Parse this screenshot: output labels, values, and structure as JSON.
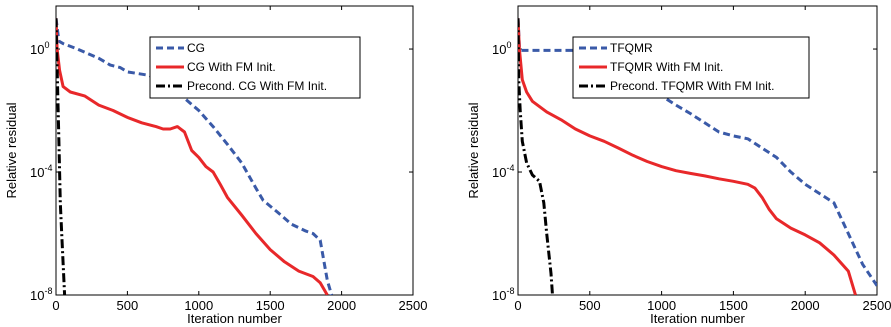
{
  "chart_data": [
    {
      "type": "line",
      "xlabel": "Iteration number",
      "ylabel": "Relative residual",
      "xlim": [
        0,
        2500
      ],
      "ylim_log10": [
        -8,
        1.4
      ],
      "y_scale": "log",
      "x_ticks": [
        "0",
        "500",
        "1000",
        "1500",
        "2000",
        "2500"
      ],
      "y_ticks": [
        {
          "base": "10",
          "exp": "0"
        },
        {
          "base": "10",
          "exp": "-4"
        },
        {
          "base": "10",
          "exp": "-8"
        }
      ],
      "legend_position": "top-right",
      "series": [
        {
          "name": "CG",
          "color": "#3a5aa8",
          "style": "dashed",
          "points": [
            [
              0,
              10
            ],
            [
              20,
              1.8
            ],
            [
              50,
              1.5
            ],
            [
              150,
              1.0
            ],
            [
              300,
              0.5
            ],
            [
              380,
              0.3
            ],
            [
              450,
              0.25
            ],
            [
              500,
              0.18
            ],
            [
              650,
              0.14
            ],
            [
              720,
              0.1
            ],
            [
              800,
              0.06
            ],
            [
              900,
              0.025
            ],
            [
              1000,
              0.01
            ],
            [
              1100,
              0.003
            ],
            [
              1200,
              0.0008
            ],
            [
              1300,
              0.0002
            ],
            [
              1400,
              3e-05
            ],
            [
              1450,
              1.2e-05
            ],
            [
              1550,
              5e-06
            ],
            [
              1650,
              2e-06
            ],
            [
              1750,
              1.2e-06
            ],
            [
              1800,
              1e-06
            ],
            [
              1850,
              6e-07
            ],
            [
              1900,
              3e-08
            ],
            [
              1930,
              1e-08
            ]
          ]
        },
        {
          "name": "CG With FM Init.",
          "color": "#e8282a",
          "style": "solid",
          "points": [
            [
              0,
              10
            ],
            [
              8,
              1
            ],
            [
              25,
              0.2
            ],
            [
              50,
              0.06
            ],
            [
              100,
              0.04
            ],
            [
              200,
              0.03
            ],
            [
              300,
              0.015
            ],
            [
              400,
              0.01
            ],
            [
              500,
              0.006
            ],
            [
              600,
              0.004
            ],
            [
              700,
              0.003
            ],
            [
              750,
              0.0025
            ],
            [
              800,
              0.0025
            ],
            [
              850,
              0.003
            ],
            [
              900,
              0.002
            ],
            [
              950,
              0.0005
            ],
            [
              1000,
              0.0003
            ],
            [
              1050,
              0.00015
            ],
            [
              1100,
              0.0001
            ],
            [
              1150,
              4e-05
            ],
            [
              1200,
              1.5e-05
            ],
            [
              1300,
              4e-06
            ],
            [
              1400,
              1e-06
            ],
            [
              1500,
              3e-07
            ],
            [
              1600,
              1.2e-07
            ],
            [
              1700,
              6e-08
            ],
            [
              1800,
              4e-08
            ],
            [
              1850,
              2.5e-08
            ],
            [
              1900,
              1e-08
            ]
          ]
        },
        {
          "name": "Precond. CG With FM Init.",
          "color": "#000000",
          "style": "dashdot",
          "points": [
            [
              0,
              10
            ],
            [
              10,
              0.1
            ],
            [
              20,
              0.001
            ],
            [
              30,
              1e-05
            ],
            [
              40,
              1e-06
            ],
            [
              60,
              1e-08
            ]
          ]
        }
      ]
    },
    {
      "type": "line",
      "xlabel": "Iteration number",
      "ylabel": "Relative residual",
      "xlim": [
        0,
        2500
      ],
      "ylim_log10": [
        -8,
        1.4
      ],
      "y_scale": "log",
      "x_ticks": [
        "0",
        "500",
        "1000",
        "1500",
        "2000",
        "2500"
      ],
      "y_ticks": [
        {
          "base": "10",
          "exp": "0"
        },
        {
          "base": "10",
          "exp": "-4"
        },
        {
          "base": "10",
          "exp": "-8"
        }
      ],
      "legend_position": "top-right",
      "series": [
        {
          "name": "TFQMR",
          "color": "#3a5aa8",
          "style": "dashed",
          "points": [
            [
              0,
              10
            ],
            [
              10,
              1.2
            ],
            [
              20,
              0.9
            ],
            [
              100,
              0.9
            ],
            [
              300,
              0.9
            ],
            [
              500,
              0.9
            ],
            [
              650,
              0.9
            ],
            [
              750,
              0.2
            ],
            [
              900,
              0.05
            ],
            [
              1000,
              0.03
            ],
            [
              1100,
              0.015
            ],
            [
              1200,
              0.008
            ],
            [
              1300,
              0.004
            ],
            [
              1400,
              0.002
            ],
            [
              1500,
              0.0015
            ],
            [
              1600,
              0.0012
            ],
            [
              1700,
              0.0006
            ],
            [
              1800,
              0.0003
            ],
            [
              1900,
              0.0001
            ],
            [
              2000,
              4e-05
            ],
            [
              2200,
              1e-05
            ],
            [
              2300,
              1e-06
            ],
            [
              2400,
              1e-07
            ],
            [
              2500,
              2e-08
            ]
          ]
        },
        {
          "name": "TFQMR With FM Init.",
          "color": "#e8282a",
          "style": "solid",
          "points": [
            [
              0,
              10
            ],
            [
              10,
              1
            ],
            [
              30,
              0.1
            ],
            [
              60,
              0.04
            ],
            [
              100,
              0.02
            ],
            [
              200,
              0.009
            ],
            [
              300,
              0.005
            ],
            [
              400,
              0.0025
            ],
            [
              500,
              0.0015
            ],
            [
              600,
              0.001
            ],
            [
              700,
              0.0006
            ],
            [
              800,
              0.00035
            ],
            [
              900,
              0.00022
            ],
            [
              1000,
              0.00015
            ],
            [
              1100,
              0.00011
            ],
            [
              1200,
              9e-05
            ],
            [
              1300,
              7.5e-05
            ],
            [
              1400,
              6e-05
            ],
            [
              1500,
              5e-05
            ],
            [
              1600,
              4e-05
            ],
            [
              1650,
              3e-05
            ],
            [
              1700,
              1.5e-05
            ],
            [
              1750,
              6e-06
            ],
            [
              1800,
              3e-06
            ],
            [
              1900,
              1.5e-06
            ],
            [
              2000,
              9e-07
            ],
            [
              2100,
              5e-07
            ],
            [
              2200,
              2e-07
            ],
            [
              2300,
              6e-08
            ],
            [
              2350,
              1e-08
            ]
          ]
        },
        {
          "name": "Precond. TFQMR With FM Init.",
          "color": "#000000",
          "style": "dashdot",
          "points": [
            [
              0,
              10
            ],
            [
              5,
              0.1
            ],
            [
              15,
              0.01
            ],
            [
              30,
              0.001
            ],
            [
              60,
              0.0002
            ],
            [
              100,
              8e-05
            ],
            [
              150,
              5e-05
            ],
            [
              180,
              1e-05
            ],
            [
              200,
              1e-06
            ],
            [
              230,
              5e-08
            ],
            [
              240,
              1e-08
            ]
          ]
        }
      ]
    }
  ]
}
